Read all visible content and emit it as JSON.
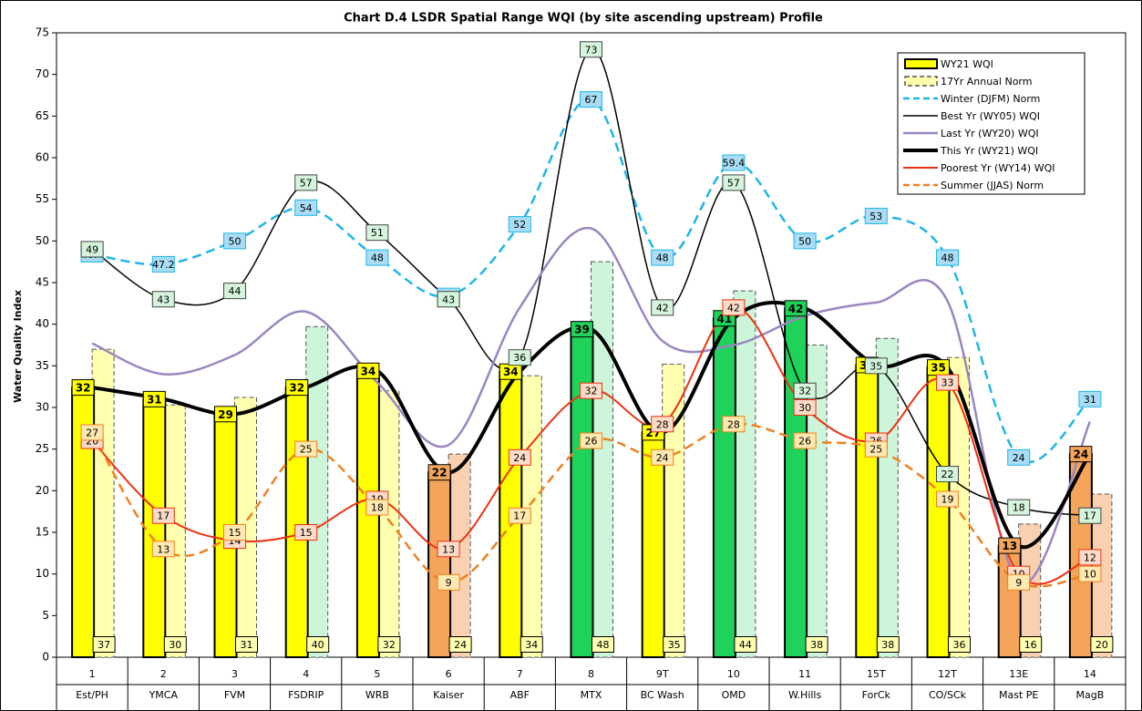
{
  "chart_data": {
    "type": "combo",
    "title": "Chart D.4 LSDR Spatial Range WQI (by site ascending upstream) Profile",
    "y_label": "Water Quality Index",
    "categories": [
      "1",
      "2",
      "3",
      "4",
      "5",
      "6",
      "7",
      "8",
      "9T",
      "10",
      "11",
      "15T",
      "12T",
      "13E",
      "14"
    ],
    "site_names": [
      "Est/PH",
      "YMCA",
      "FVM",
      "FSDRIP",
      "WRB",
      "Kaiser",
      "ABF",
      "MTX",
      "BC Wash",
      "OMD",
      "W.Hills",
      "ForCk",
      "CO/SCk",
      "Mast PE",
      "MagB"
    ],
    "ylim": [
      0,
      75
    ],
    "yticks": [
      0,
      5,
      10,
      15,
      20,
      25,
      30,
      35,
      40,
      45,
      50,
      55,
      60,
      65,
      70,
      75
    ],
    "grid": false,
    "legend": "top right",
    "series": [
      {
        "name": "WY21 WQI",
        "type": "bar",
        "color": "#ffff00",
        "colors": [
          "#ffff00",
          "#ffff00",
          "#ffff00",
          "#ffff00",
          "#ffff00",
          "#f5a55a",
          "#ffff00",
          "#1fd35a",
          "#ffff00",
          "#1fd35a",
          "#1fd35a",
          "#ffff00",
          "#ffff00",
          "#f5a55a",
          "#f5a55a"
        ],
        "values": [
          32.4,
          31,
          29.2,
          32.4,
          34.4,
          22.2,
          34.3,
          39.4,
          27,
          40.7,
          41.9,
          35.1,
          34.8,
          13.4,
          24.4
        ],
        "value_labels": [
          "32",
          "31",
          "29",
          "32",
          "34",
          "22",
          "34",
          "39",
          "27",
          "41",
          "42",
          "35",
          "35",
          "13",
          "24"
        ]
      },
      {
        "name": "17Yr Annual Norm",
        "type": "bar",
        "color": "#ffffb0",
        "colors": [
          "#ffffb0",
          "#ffffb0",
          "#ffffb0",
          "#ccf5d9",
          "#ffffb0",
          "#fad1b0",
          "#ffffb0",
          "#ccf5d9",
          "#ffffb0",
          "#ccf5d9",
          "#ccf5d9",
          "#ccf5d9",
          "#ffffb0",
          "#fad1b0",
          "#fad1b0"
        ],
        "values": [
          37.0,
          30.3,
          31.2,
          39.7,
          32.0,
          24.4,
          33.8,
          47.5,
          35.2,
          44.0,
          37.5,
          38.3,
          36.0,
          16.0,
          19.6
        ],
        "value_labels": [
          "37",
          "30",
          "31",
          "40",
          "32",
          "24",
          "34",
          "48",
          "35",
          "44",
          "38",
          "38",
          "36",
          "16",
          "20"
        ]
      },
      {
        "name": "Winter (DJFM) Norm",
        "type": "line",
        "color": "#1fb5e8",
        "dash": true,
        "label_fill": "#a8ddf5",
        "values": [
          48.4,
          47.2,
          50,
          54,
          48,
          43.4,
          52,
          67,
          48,
          59.4,
          50,
          53,
          48,
          24,
          31
        ]
      },
      {
        "name": "Best Yr (WY05) WQI",
        "type": "line",
        "color": "#000000",
        "width": 1.5,
        "label_fill": "#d4f5dc",
        "values": [
          49,
          43,
          44,
          57,
          51,
          43,
          36,
          73,
          42,
          57,
          32,
          35,
          22,
          18,
          17
        ]
      },
      {
        "name": "Last Yr (WY20) WQI",
        "type": "line",
        "color": "#9a86c0",
        "width": 2.5,
        "values": [
          37.7,
          34,
          36.3,
          41.5,
          33,
          25.5,
          42,
          51.5,
          38,
          37.5,
          41,
          42.6,
          42.8,
          9,
          28.3
        ]
      },
      {
        "name": "This Yr (WY21) WQI",
        "type": "line",
        "color": "#000000",
        "width": 4,
        "values": [
          32.4,
          31,
          29.2,
          32.4,
          34.4,
          22.2,
          34.3,
          39.4,
          27,
          40.7,
          41.9,
          35.1,
          34.8,
          13.4,
          24.4
        ]
      },
      {
        "name": "Poorest Yr (WY14) WQI",
        "type": "line",
        "color": "#ee3010",
        "width": 2,
        "label_fill": "#fcdcc8",
        "values": [
          26,
          17,
          14,
          15,
          19,
          13,
          24,
          32,
          28,
          42,
          30,
          26,
          33,
          10,
          12
        ]
      },
      {
        "name": "Summer (JJAS) Norm",
        "type": "line",
        "color": "#f08020",
        "width": 2.5,
        "dash": true,
        "label_fill": "#ffe9b0",
        "values": [
          27,
          13,
          15,
          25,
          18,
          9,
          17,
          26,
          24,
          28,
          26,
          25,
          19,
          9,
          10
        ]
      }
    ]
  }
}
